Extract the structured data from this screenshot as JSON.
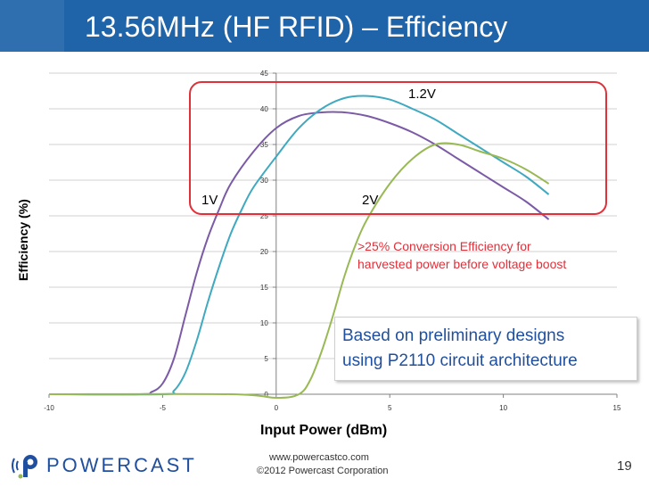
{
  "slide": {
    "title": "13.56MHz (HF RFID) – Efficiency",
    "page_number": "19",
    "footer_url": "www.powercastco.com",
    "footer_copyright": "©2012  Powercast Corporation",
    "logo_text": "POWERCAST"
  },
  "annotations": {
    "label_1v": "1V",
    "label_2v": "2V",
    "label_12v": "1.2V",
    "conversion_line1": ">25% Conversion Efficiency for",
    "conversion_line2": "harvested power before voltage boost",
    "prelim_line1": "Based on preliminary designs",
    "prelim_line2": "using P2110  circuit architecture"
  },
  "colors": {
    "title_bar": "#1f63a8",
    "series_1v": "#7b5aa6",
    "series_12v": "#3fa9c0",
    "series_2v": "#98b954",
    "highlight": "#e0303a",
    "prelim_text": "#1f4f9e"
  },
  "chart_data": {
    "type": "line",
    "title": "",
    "xlabel": "Input Power (dBm)",
    "ylabel": "Efficiency (%)",
    "xlim": [
      -10,
      15
    ],
    "ylim": [
      0,
      45
    ],
    "x_ticks": [
      -10,
      -5,
      0,
      5,
      10,
      15
    ],
    "y_ticks": [
      0,
      5,
      10,
      15,
      20,
      25,
      30,
      35,
      40,
      45
    ],
    "grid": "horizontal",
    "series": [
      {
        "name": "1V",
        "color": "#7b5aa6",
        "points": [
          [
            -10,
            0
          ],
          [
            -6,
            0
          ],
          [
            -5.5,
            0.3
          ],
          [
            -5,
            1.5
          ],
          [
            -4.5,
            5
          ],
          [
            -4,
            11
          ],
          [
            -3.5,
            17
          ],
          [
            -3,
            22
          ],
          [
            -2.5,
            26
          ],
          [
            -2,
            29.5
          ],
          [
            -1,
            34
          ],
          [
            0,
            37.3
          ],
          [
            1,
            39
          ],
          [
            2,
            39.5
          ],
          [
            3,
            39.5
          ],
          [
            4,
            39
          ],
          [
            5,
            38
          ],
          [
            6,
            36.7
          ],
          [
            7,
            35
          ],
          [
            8,
            33
          ],
          [
            9,
            31
          ],
          [
            10,
            29
          ],
          [
            11,
            27
          ],
          [
            12,
            24.5
          ]
        ]
      },
      {
        "name": "1.2V",
        "color": "#3fa9c0",
        "points": [
          [
            -10,
            0
          ],
          [
            -5,
            0
          ],
          [
            -4.5,
            0.5
          ],
          [
            -4,
            3
          ],
          [
            -3.5,
            7.5
          ],
          [
            -3,
            13
          ],
          [
            -2.5,
            18
          ],
          [
            -2,
            22.5
          ],
          [
            -1.5,
            26
          ],
          [
            -1,
            29
          ],
          [
            0,
            33.3
          ],
          [
            1,
            37.3
          ],
          [
            2,
            40
          ],
          [
            3,
            41.5
          ],
          [
            4,
            41.8
          ],
          [
            5,
            41.3
          ],
          [
            6,
            40
          ],
          [
            7,
            38.5
          ],
          [
            8,
            36.5
          ],
          [
            9,
            34.5
          ],
          [
            10,
            32.5
          ],
          [
            11,
            30.5
          ],
          [
            12,
            28
          ]
        ]
      },
      {
        "name": "2V",
        "color": "#98b954",
        "points": [
          [
            -10,
            0
          ],
          [
            -2,
            0
          ],
          [
            0,
            -0.5
          ],
          [
            1,
            0
          ],
          [
            1.5,
            2
          ],
          [
            2,
            6
          ],
          [
            2.5,
            11
          ],
          [
            3,
            16.5
          ],
          [
            3.5,
            21
          ],
          [
            4,
            24.5
          ],
          [
            5,
            29.5
          ],
          [
            6,
            33
          ],
          [
            7,
            35
          ],
          [
            8,
            35
          ],
          [
            9,
            34
          ],
          [
            10,
            33
          ],
          [
            11,
            31.5
          ],
          [
            12,
            29.5
          ]
        ]
      }
    ]
  }
}
